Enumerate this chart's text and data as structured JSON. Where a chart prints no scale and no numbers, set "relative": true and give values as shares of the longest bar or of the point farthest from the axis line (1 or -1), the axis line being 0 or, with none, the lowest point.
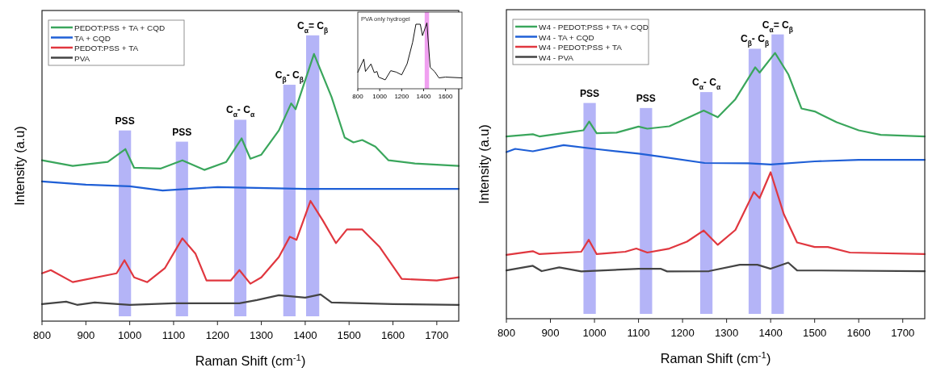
{
  "chart_data": [
    {
      "type": "line",
      "relative": true,
      "xlabel": "Raman Shift (cm$^{-1}$)",
      "ylabel": "Intensity (a.u)",
      "xlim": [
        800,
        1750
      ],
      "xticks": [
        800,
        900,
        1000,
        1100,
        1200,
        1300,
        1400,
        1500,
        1600,
        1700
      ],
      "legend": "top left",
      "tick_labels": "x",
      "series": [
        {
          "name": "PEDOT:PSS + TA + CQD",
          "color": "#3aa65c",
          "x": [
            800,
            870,
            950,
            990,
            1010,
            1070,
            1120,
            1170,
            1220,
            1255,
            1275,
            1300,
            1340,
            1368,
            1378,
            1420,
            1460,
            1490,
            1510,
            1530,
            1560,
            1590,
            1650,
            1750
          ],
          "values": [
            0.602,
            0.581,
            0.596,
            0.644,
            0.574,
            0.571,
            0.602,
            0.566,
            0.596,
            0.684,
            0.608,
            0.623,
            0.714,
            0.815,
            0.793,
            1.0,
            0.839,
            0.687,
            0.669,
            0.678,
            0.653,
            0.602,
            0.59,
            0.581
          ]
        },
        {
          "name": "TA + CQD",
          "color": "#1f5fd6",
          "x": [
            800,
            900,
            1000,
            1075,
            1200,
            1400,
            1750
          ],
          "values": [
            0.523,
            0.511,
            0.505,
            0.489,
            0.502,
            0.495,
            0.495
          ]
        },
        {
          "name": "PEDOT:PSS + TA",
          "color": "#e0373f",
          "x": [
            800,
            820,
            870,
            970,
            988,
            1010,
            1040,
            1080,
            1120,
            1150,
            1175,
            1230,
            1250,
            1275,
            1300,
            1340,
            1365,
            1380,
            1412,
            1440,
            1470,
            1495,
            1530,
            1570,
            1620,
            1700,
            1750
          ],
          "values": [
            0.179,
            0.191,
            0.146,
            0.179,
            0.228,
            0.164,
            0.146,
            0.198,
            0.31,
            0.252,
            0.152,
            0.152,
            0.191,
            0.14,
            0.164,
            0.24,
            0.316,
            0.304,
            0.45,
            0.377,
            0.292,
            0.343,
            0.343,
            0.277,
            0.158,
            0.152,
            0.164
          ]
        },
        {
          "name": "PVA",
          "color": "#444444",
          "x": [
            800,
            855,
            880,
            920,
            1000,
            1100,
            1250,
            1290,
            1340,
            1400,
            1435,
            1460,
            1600,
            1750
          ],
          "values": [
            0.064,
            0.073,
            0.061,
            0.07,
            0.061,
            0.067,
            0.067,
            0.079,
            0.097,
            0.088,
            0.1,
            0.07,
            0.064,
            0.061
          ]
        }
      ],
      "bands": [
        {
          "axis": "x",
          "from": 975,
          "to": 1003,
          "label": "PSS",
          "color": "#b4b4f7"
        },
        {
          "axis": "x",
          "from": 1105,
          "to": 1133,
          "label": "PSS",
          "color": "#b4b4f7"
        },
        {
          "axis": "x",
          "from": 1238,
          "to": 1266,
          "label": "C$_{α}$- C$_{α}$",
          "color": "#b4b4f7"
        },
        {
          "axis": "x",
          "from": 1350,
          "to": 1378,
          "label": "C$_{β}$- C$_{β}$",
          "color": "#b4b4f7"
        },
        {
          "axis": "x",
          "from": 1402,
          "to": 1432,
          "label": "C$_{α}$= C$_{β}$",
          "color": "#b4b4f7"
        }
      ]
    },
    {
      "type": "line",
      "relative": true,
      "xlim": [
        800,
        1750
      ],
      "xticks": [
        800,
        1000,
        1200,
        1400,
        1600
      ],
      "tick_labels": "x",
      "annotations": [
        "PVA only hydrogel"
      ],
      "series": [
        {
          "color": "#111111",
          "x": [
            800,
            855,
            870,
            920,
            950,
            975,
            990,
            1050,
            1100,
            1150,
            1200,
            1250,
            1300,
            1330,
            1370,
            1390,
            1430,
            1460,
            1500,
            1540,
            1600,
            1750
          ],
          "values": [
            0.249,
            0.451,
            0.262,
            0.376,
            0.245,
            0.262,
            0.177,
            0.135,
            0.274,
            0.253,
            0.211,
            0.38,
            0.705,
            0.979,
            0.979,
            0.806,
            1.0,
            0.325,
            0.262,
            0.165,
            0.177,
            0.165
          ]
        }
      ],
      "bands": [
        {
          "axis": "x",
          "from": 1410,
          "to": 1450,
          "color": "#f0a0f0"
        }
      ]
    },
    {
      "type": "line",
      "relative": true,
      "xlabel": "Raman Shift (cm$^{-1}$)",
      "ylabel": "Intensity (a.u)",
      "xlim": [
        800,
        1750
      ],
      "xticks": [
        800,
        900,
        1000,
        1100,
        1200,
        1300,
        1400,
        1500,
        1600,
        1700
      ],
      "legend": "top left",
      "tick_labels": "x",
      "series": [
        {
          "name": "W4 - PEDOT:PSS + TA + CQD",
          "color": "#3aa65c",
          "x": [
            800,
            860,
            875,
            950,
            975,
            988,
            1005,
            1050,
            1100,
            1120,
            1170,
            1220,
            1248,
            1280,
            1320,
            1365,
            1375,
            1410,
            1440,
            1470,
            1500,
            1550,
            1600,
            1650,
            1750
          ],
          "values": [
            0.686,
            0.694,
            0.686,
            0.703,
            0.709,
            0.742,
            0.698,
            0.7,
            0.723,
            0.715,
            0.724,
            0.762,
            0.783,
            0.758,
            0.826,
            0.946,
            0.926,
            1.0,
            0.92,
            0.791,
            0.78,
            0.739,
            0.709,
            0.692,
            0.686
          ]
        },
        {
          "name": "W4 - TA + CQD",
          "color": "#1f5fd6",
          "x": [
            800,
            820,
            860,
            930,
            1000,
            1100,
            1150,
            1250,
            1350,
            1400,
            1500,
            1600,
            1750
          ],
          "values": [
            0.627,
            0.639,
            0.63,
            0.653,
            0.639,
            0.621,
            0.61,
            0.586,
            0.585,
            0.58,
            0.592,
            0.598,
            0.598
          ]
        },
        {
          "name": "W4 - PEDOT:PSS + TA",
          "color": "#e0373f",
          "x": [
            800,
            860,
            875,
            970,
            987,
            1005,
            1070,
            1095,
            1120,
            1170,
            1210,
            1248,
            1280,
            1320,
            1362,
            1375,
            1400,
            1430,
            1460,
            1500,
            1530,
            1580,
            1750
          ],
          "values": [
            0.24,
            0.254,
            0.243,
            0.252,
            0.297,
            0.243,
            0.252,
            0.264,
            0.249,
            0.264,
            0.29,
            0.332,
            0.278,
            0.334,
            0.477,
            0.454,
            0.551,
            0.393,
            0.287,
            0.27,
            0.27,
            0.249,
            0.243
          ]
        },
        {
          "name": "W4 - PVA",
          "color": "#444444",
          "x": [
            800,
            860,
            880,
            920,
            970,
            1100,
            1150,
            1165,
            1260,
            1330,
            1370,
            1400,
            1440,
            1460,
            1750
          ],
          "values": [
            0.182,
            0.199,
            0.179,
            0.193,
            0.178,
            0.188,
            0.188,
            0.178,
            0.179,
            0.203,
            0.203,
            0.188,
            0.211,
            0.182,
            0.179
          ]
        }
      ],
      "bands": [
        {
          "axis": "x",
          "from": 975,
          "to": 1003,
          "label": "PSS",
          "color": "#b4b4f7"
        },
        {
          "axis": "x",
          "from": 1103,
          "to": 1131,
          "label": "PSS",
          "color": "#b4b4f7"
        },
        {
          "axis": "x",
          "from": 1240,
          "to": 1268,
          "label": "C$_{α}$- C$_{α}$",
          "color": "#b4b4f7"
        },
        {
          "axis": "x",
          "from": 1350,
          "to": 1378,
          "label": "C$_{β}$- C$_{β}$",
          "color": "#b4b4f7"
        },
        {
          "axis": "x",
          "from": 1402,
          "to": 1430,
          "label": "C$_{α}$= C$_{β}$",
          "color": "#b4b4f7"
        }
      ]
    }
  ]
}
